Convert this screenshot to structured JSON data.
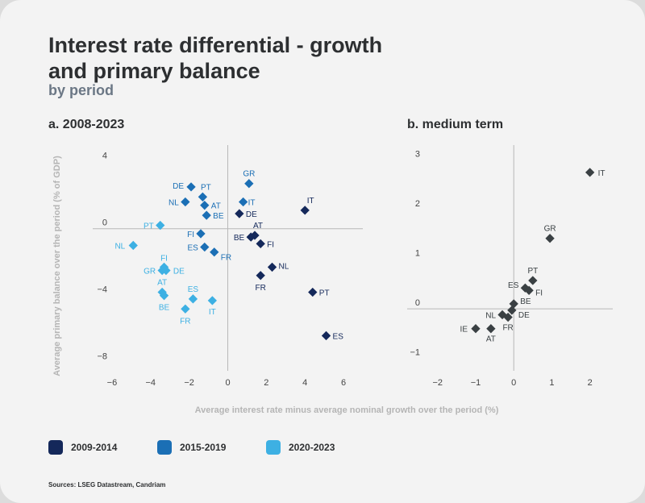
{
  "title": "Interest rate differential - growth and primary balance",
  "subtitle": "by period",
  "source": "Sources: LSEG Datastream, Candriam",
  "colors": {
    "p1": "#14285a",
    "p2": "#1b6fb5",
    "p3": "#3db0e3",
    "p4": "#3a4043",
    "axis": "#b8b8b8",
    "tick": "#444444",
    "label": "#b5b5b5"
  },
  "legend": [
    {
      "label": "2009-2014",
      "color": "#14285a"
    },
    {
      "label": "2015-2019",
      "color": "#1b6fb5"
    },
    {
      "label": "2020-2023",
      "color": "#3db0e3"
    }
  ],
  "chart_data": [
    {
      "type": "scatter",
      "panel_title": "a. 2008-2023",
      "xlabel": "Average interest rate minus average nominal  growth over the period (%)",
      "ylabel": "Average primary balance over the period (% of GDP)",
      "xlim": [
        -7,
        7
      ],
      "ylim": [
        -8.5,
        5
      ],
      "xticks": [
        -6,
        -4,
        -2,
        0,
        2,
        4,
        6
      ],
      "yticks": [
        4,
        0,
        -4,
        -8
      ],
      "series": [
        {
          "name": "2009-2014",
          "color": "#14285a",
          "points": [
            {
              "label": "IT",
              "x": 4.0,
              "y": 1.1
            },
            {
              "label": "DE",
              "x": 0.6,
              "y": 0.9
            },
            {
              "label": "AT",
              "x": 1.4,
              "y": -0.4
            },
            {
              "label": "BE",
              "x": 1.2,
              "y": -0.5
            },
            {
              "label": "FI",
              "x": 1.7,
              "y": -0.9
            },
            {
              "label": "NL",
              "x": 2.3,
              "y": -2.3
            },
            {
              "label": "FR",
              "x": 1.7,
              "y": -2.8
            },
            {
              "label": "PT",
              "x": 4.4,
              "y": -3.8
            },
            {
              "label": "ES",
              "x": 5.1,
              "y": -6.4
            }
          ]
        },
        {
          "name": "2015-2019",
          "color": "#1b6fb5",
          "points": [
            {
              "label": "GR",
              "x": 1.1,
              "y": 2.7
            },
            {
              "label": "DE",
              "x": -1.9,
              "y": 2.5
            },
            {
              "label": "PT",
              "x": -1.3,
              "y": 1.9
            },
            {
              "label": "NL",
              "x": -2.2,
              "y": 1.6
            },
            {
              "label": "AT",
              "x": -1.2,
              "y": 1.4
            },
            {
              "label": "IT",
              "x": 0.8,
              "y": 1.6
            },
            {
              "label": "BE",
              "x": -1.1,
              "y": 0.8
            },
            {
              "label": "FI",
              "x": -1.4,
              "y": -0.3
            },
            {
              "label": "ES",
              "x": -1.2,
              "y": -1.1
            },
            {
              "label": "FR",
              "x": -0.7,
              "y": -1.4
            }
          ]
        },
        {
          "name": "2020-2023",
          "color": "#3db0e3",
          "points": [
            {
              "label": "PT",
              "x": -3.5,
              "y": 0.2
            },
            {
              "label": "NL",
              "x": -4.9,
              "y": -1.0
            },
            {
              "label": "FI",
              "x": -3.3,
              "y": -2.3
            },
            {
              "label": "GR",
              "x": -3.4,
              "y": -2.5
            },
            {
              "label": "DE",
              "x": -3.2,
              "y": -2.5
            },
            {
              "label": "AT",
              "x": -3.4,
              "y": -3.8
            },
            {
              "label": "BE",
              "x": -3.3,
              "y": -4.0
            },
            {
              "label": "ES",
              "x": -1.8,
              "y": -4.2
            },
            {
              "label": "IT",
              "x": -0.8,
              "y": -4.3
            },
            {
              "label": "FR",
              "x": -2.2,
              "y": -4.8
            }
          ]
        }
      ]
    },
    {
      "type": "scatter",
      "panel_title": "b. medium term",
      "xlim": [
        -2.8,
        2.6
      ],
      "ylim": [
        -1.25,
        3.3
      ],
      "xticks": [
        -2,
        -1,
        0,
        1,
        2
      ],
      "yticks": [
        3,
        2,
        1,
        0,
        -1
      ],
      "series": [
        {
          "name": "medium term",
          "color": "#3a4043",
          "points": [
            {
              "label": "IT",
              "x": 2.0,
              "y": 2.75
            },
            {
              "label": "GR",
              "x": 0.95,
              "y": 1.42
            },
            {
              "label": "PT",
              "x": 0.5,
              "y": 0.57
            },
            {
              "label": "ES",
              "x": 0.3,
              "y": 0.42
            },
            {
              "label": "FI",
              "x": 0.4,
              "y": 0.37
            },
            {
              "label": "BE",
              "x": 0.0,
              "y": 0.1
            },
            {
              "label": "DE",
              "x": -0.05,
              "y": -0.03
            },
            {
              "label": "NL",
              "x": -0.3,
              "y": -0.12
            },
            {
              "label": "FR",
              "x": -0.15,
              "y": -0.17
            },
            {
              "label": "IE",
              "x": -1.0,
              "y": -0.4
            },
            {
              "label": "AT",
              "x": -0.6,
              "y": -0.4
            }
          ]
        }
      ]
    }
  ]
}
